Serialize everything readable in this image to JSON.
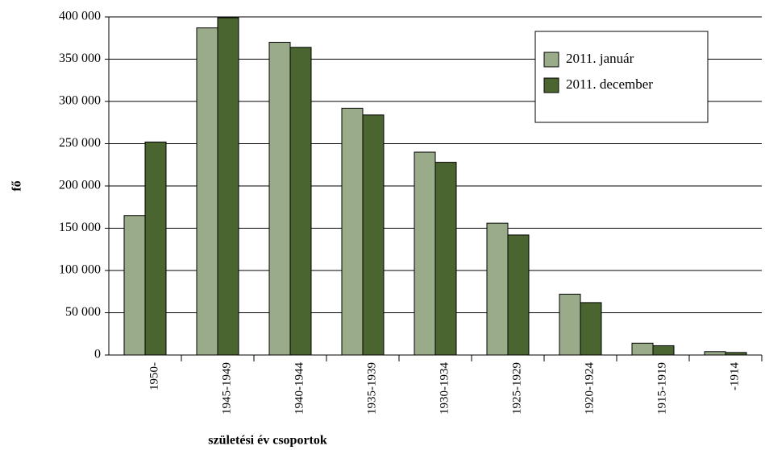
{
  "chart_data": {
    "type": "bar",
    "y_label": "fő",
    "x_label": "születési év csoportok",
    "categories": [
      "1950-",
      "1945-1949",
      "1940-1944",
      "1935-1939",
      "1930-1934",
      "1925-1929",
      "1920-1924",
      "1915-1919",
      "-1914"
    ],
    "series": [
      {
        "name": "2011. január",
        "color": "#9aab8a",
        "values": [
          165000,
          387000,
          370000,
          292000,
          240000,
          156000,
          72000,
          14000,
          4000
        ]
      },
      {
        "name": "2011. december",
        "color": "#4b6530",
        "values": [
          252000,
          399000,
          364000,
          284000,
          228000,
          142000,
          62000,
          11000,
          3000
        ]
      }
    ],
    "ylim": [
      0,
      400000
    ],
    "yticks": [
      {
        "value": 0,
        "label": "0"
      },
      {
        "value": 50000,
        "label": "50 000"
      },
      {
        "value": 100000,
        "label": "100 000"
      },
      {
        "value": 150000,
        "label": "150 000"
      },
      {
        "value": 200000,
        "label": "200 000"
      },
      {
        "value": 250000,
        "label": "250 000"
      },
      {
        "value": 300000,
        "label": "300 000"
      },
      {
        "value": 350000,
        "label": "350 000"
      },
      {
        "value": 400000,
        "label": "400 000"
      }
    ],
    "grid": true,
    "legend": "top-right"
  }
}
